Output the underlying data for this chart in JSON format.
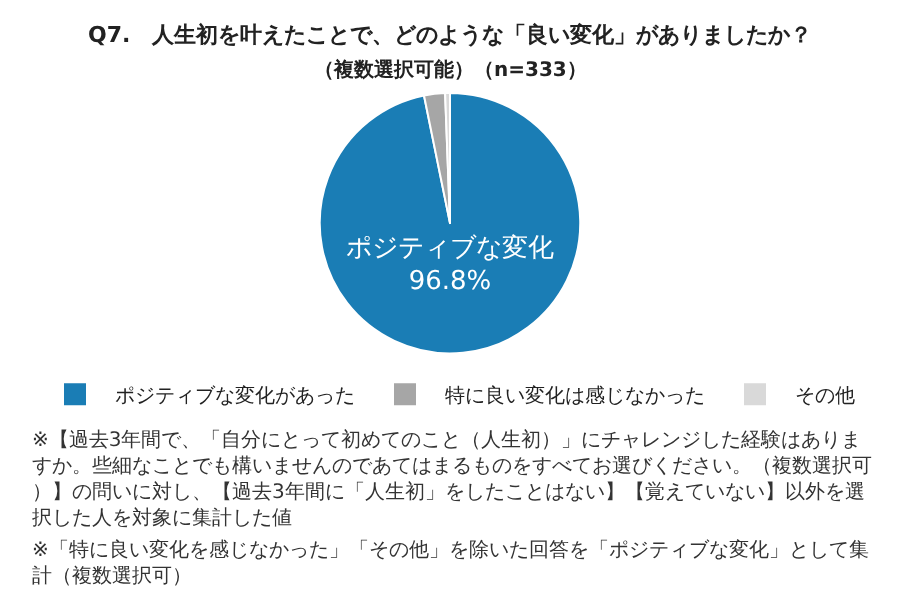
{
  "chart_data": {
    "type": "pie",
    "title": "Q7.　人生初を叶えたことで、どのような「良い変化」がありましたか？",
    "subtitle": "（複数選択可能）（n=333）",
    "categories": [
      "ポジティブな変化があった",
      "特に良い変化は感じなかった",
      "その他"
    ],
    "values": [
      96.8,
      2.6,
      0.6
    ],
    "colors": [
      "#1a7db5",
      "#a6a6a6",
      "#d9d9d9"
    ],
    "value_labels": [
      "ポジティブな変化\n96.8%",
      null,
      null
    ],
    "legend": "bottom",
    "annotations": [
      "※【過去3年間で、「自分にとって初めてのこと（人生初）」にチャレンジした経験はありますか。些細なことでも構いませんのであてはまるものをすべてお選びください。（複数選択可）】の問いに対し、【過去3年間に「人生初」をしたことはない】【覚えていない】以外を選択した人を対象に集計した値",
      "※「特に良い変化を感じなかった」「その他」を除いた回答を「ポジティブな変化」として集計（複数選択可）"
    ]
  }
}
